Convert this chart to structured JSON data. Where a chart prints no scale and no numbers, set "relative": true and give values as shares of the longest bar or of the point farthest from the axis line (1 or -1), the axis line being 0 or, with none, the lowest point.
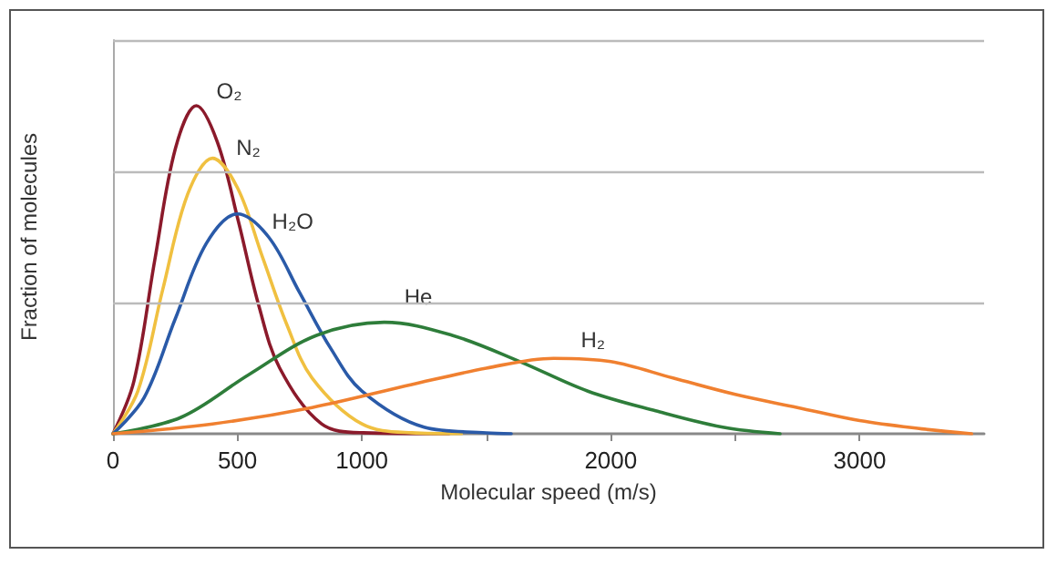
{
  "chart_data": {
    "type": "line",
    "relative": true,
    "xlabel": "Molecular speed (m/s)",
    "ylabel": "Fraction of molecules",
    "xlim": [
      0,
      3500
    ],
    "xticks": [
      0,
      500,
      1000,
      {
        "value": 1500,
        "label": null
      },
      2000,
      {
        "value": 2500,
        "label": null
      },
      3000
    ],
    "ref_lines": [
      {
        "axis": "y",
        "value": 0.4,
        "color": "#bbbbbb"
      },
      {
        "axis": "y",
        "value": 0.8,
        "color": "#bbbbbb"
      },
      {
        "axis": "y",
        "value": 1.2,
        "color": "#bbbbbb"
      }
    ],
    "legend": false,
    "marker": "none",
    "line_style": "solid",
    "series": [
      {
        "name": "O₂",
        "color": "#8b1a2b",
        "x": [
          0,
          84,
          168,
          251,
          335,
          419,
          503,
          586,
          670,
          838,
          1005,
          1350
        ],
        "values": [
          0,
          0.16,
          0.53,
          0.87,
          1,
          0.89,
          0.65,
          0.39,
          0.2,
          0.03,
          0.003,
          0
        ]
      },
      {
        "name": "N₂",
        "color": "#f0c040",
        "x": [
          0,
          100,
          200,
          300,
          400,
          500,
          600,
          700,
          800,
          1000,
          1200,
          1400
        ],
        "values": [
          0,
          0.13,
          0.44,
          0.73,
          0.84,
          0.75,
          0.54,
          0.33,
          0.17,
          0.03,
          0.003,
          0
        ]
      },
      {
        "name": "H₂O",
        "color": "#2a5aa8",
        "x": [
          0,
          125,
          250,
          375,
          500,
          625,
          750,
          875,
          1000,
          1250,
          1500,
          1600
        ],
        "values": [
          0,
          0.11,
          0.35,
          0.58,
          0.67,
          0.6,
          0.43,
          0.26,
          0.13,
          0.02,
          0.003,
          0
        ]
      },
      {
        "name": "He",
        "color": "#2e7d3a",
        "x": [
          0,
          273,
          545,
          818,
          1090,
          1363,
          1635,
          1908,
          2180,
          2450,
          2680
        ],
        "values": [
          0,
          0.05,
          0.18,
          0.3,
          0.34,
          0.3,
          0.22,
          0.13,
          0.07,
          0.02,
          0
        ]
      },
      {
        "name": "H₂",
        "color": "#f08030",
        "x": [
          0,
          400,
          800,
          1200,
          1500,
          1770,
          2000,
          2250,
          2500,
          2750,
          3000,
          3250,
          3450
        ],
        "values": [
          0,
          0.03,
          0.08,
          0.15,
          0.2,
          0.23,
          0.22,
          0.17,
          0.12,
          0.08,
          0.04,
          0.015,
          0
        ]
      }
    ]
  }
}
